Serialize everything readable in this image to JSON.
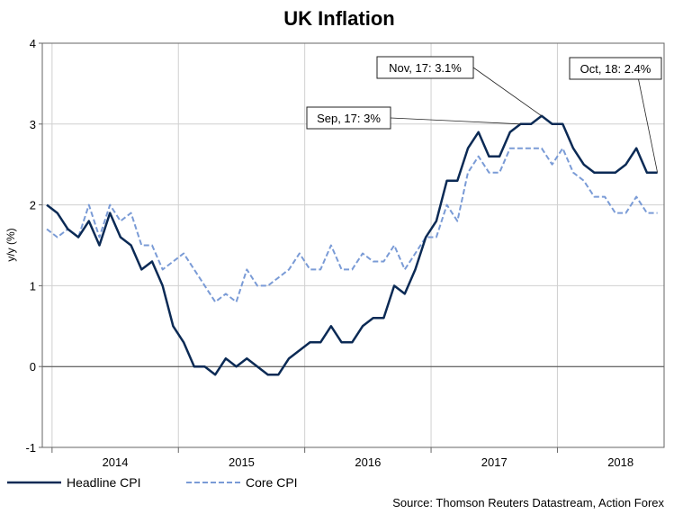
{
  "chart_data": {
    "type": "line",
    "title": "UK Inflation",
    "ylabel": "y/y (%)",
    "xlabel": "",
    "ylim": [
      -1,
      4
    ],
    "yticks": [
      -1,
      0,
      1,
      2,
      3,
      4
    ],
    "x_start": "2013-12",
    "years": [
      "2014",
      "2015",
      "2016",
      "2017",
      "2018"
    ],
    "series": [
      {
        "name": "Headline CPI",
        "color": "#0b2a55",
        "style": "solid",
        "values": [
          2.0,
          1.9,
          1.7,
          1.6,
          1.8,
          1.5,
          1.9,
          1.6,
          1.5,
          1.2,
          1.3,
          1.0,
          0.5,
          0.3,
          0.0,
          0.0,
          -0.1,
          0.1,
          0.0,
          0.1,
          0.0,
          -0.1,
          -0.1,
          0.1,
          0.2,
          0.3,
          0.3,
          0.5,
          0.3,
          0.3,
          0.5,
          0.6,
          0.6,
          1.0,
          0.9,
          1.2,
          1.6,
          1.8,
          2.3,
          2.3,
          2.7,
          2.9,
          2.6,
          2.6,
          2.9,
          3.0,
          3.0,
          3.1,
          3.0,
          3.0,
          2.7,
          2.5,
          2.4,
          2.4,
          2.4,
          2.5,
          2.7,
          2.4,
          2.4
        ]
      },
      {
        "name": "Core CPI",
        "color": "#7a9bd6",
        "style": "dashed",
        "values": [
          1.7,
          1.6,
          1.7,
          1.6,
          2.0,
          1.6,
          2.0,
          1.8,
          1.9,
          1.5,
          1.5,
          1.2,
          1.3,
          1.4,
          1.2,
          1.0,
          0.8,
          0.9,
          0.8,
          1.2,
          1.0,
          1.0,
          1.1,
          1.2,
          1.4,
          1.2,
          1.2,
          1.5,
          1.2,
          1.2,
          1.4,
          1.3,
          1.3,
          1.5,
          1.2,
          1.4,
          1.6,
          1.6,
          2.0,
          1.8,
          2.4,
          2.6,
          2.4,
          2.4,
          2.7,
          2.7,
          2.7,
          2.7,
          2.5,
          2.7,
          2.4,
          2.3,
          2.1,
          2.1,
          1.9,
          1.9,
          2.1,
          1.9,
          1.9
        ]
      }
    ],
    "annotations": [
      {
        "text": "Nov, 17: 3.1%",
        "x_index": 47,
        "y": 3.1
      },
      {
        "text": "Sep, 17: 3%",
        "x_index": 45,
        "y": 3.0
      },
      {
        "text": "Oct, 18: 2.4%",
        "x_index": 58,
        "y": 2.4
      }
    ],
    "source": "Source: Thomson Reuters Datastream, Action Forex"
  }
}
